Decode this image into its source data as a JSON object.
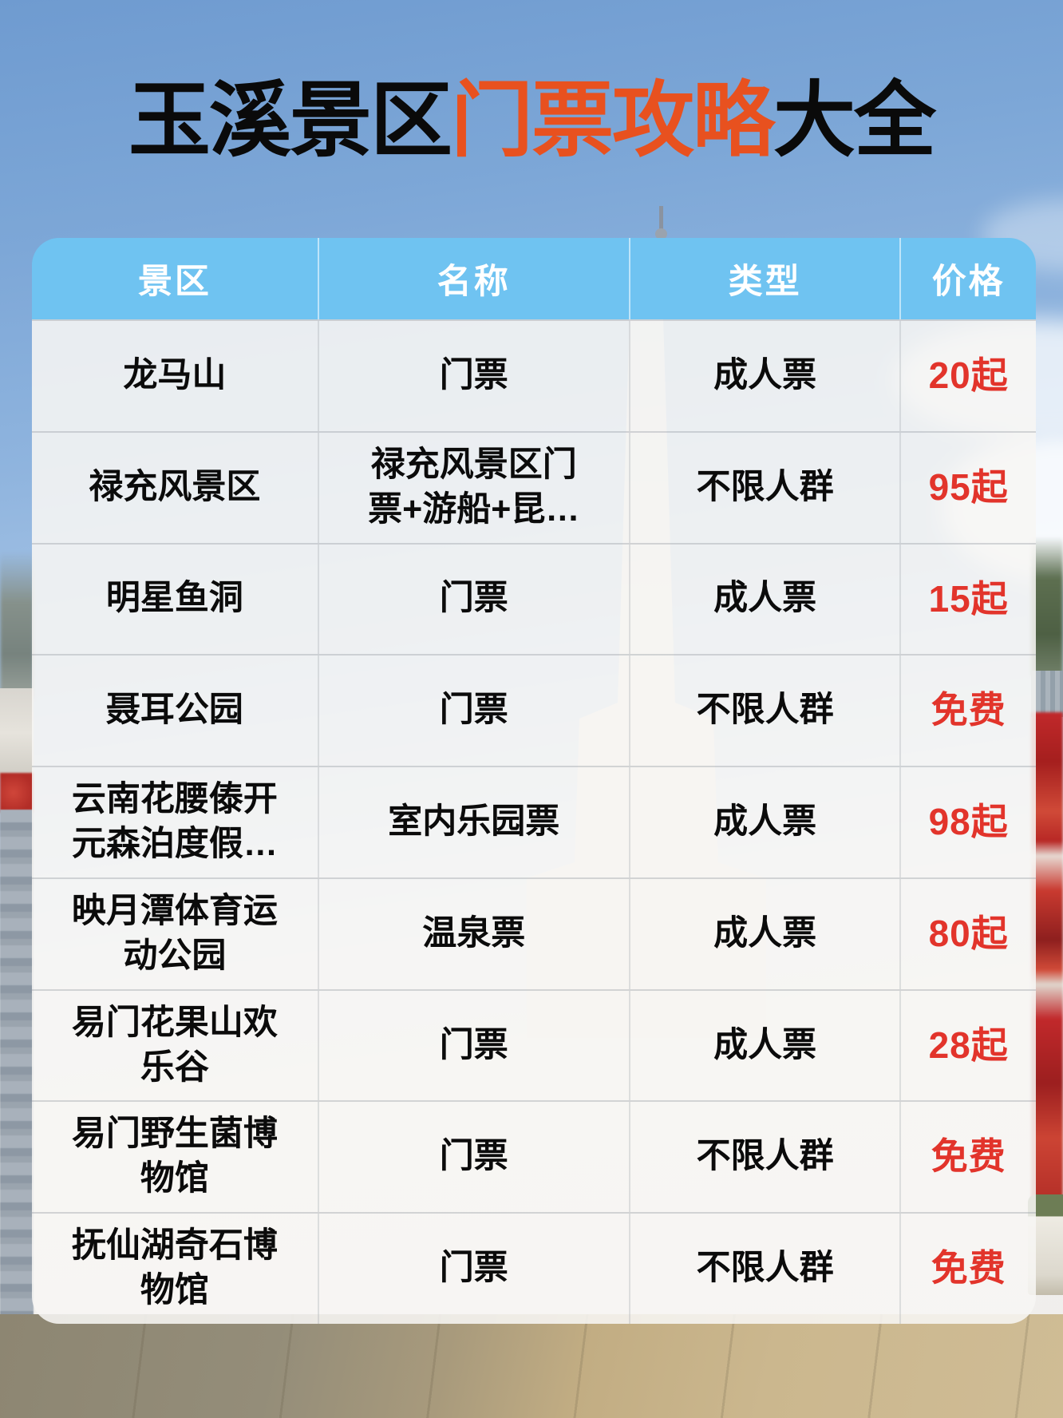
{
  "title": {
    "part1": "玉溪景区",
    "part2": "门票攻略",
    "part3": "大全"
  },
  "colors": {
    "title_dark": "#0A0A0A",
    "title_accent": "#E8511F",
    "header_bg": "#6FC3F1",
    "header_text": "#FFFFFF",
    "price_red": "#E2342B",
    "body_text": "#0B0B0B"
  },
  "table": {
    "headers": [
      {
        "label": "景区"
      },
      {
        "label": "名称"
      },
      {
        "label": "类型"
      },
      {
        "label": "价格"
      }
    ],
    "rows": [
      {
        "area": "龙马山",
        "name": "门票",
        "type": "成人票",
        "price": "20起"
      },
      {
        "area": "禄充风景区",
        "name": "禄充风景区门\n票+游船+昆…",
        "type": "不限人群",
        "price": "95起"
      },
      {
        "area": "明星鱼洞",
        "name": "门票",
        "type": "成人票",
        "price": "15起"
      },
      {
        "area": "聂耳公园",
        "name": "门票",
        "type": "不限人群",
        "price": "免费"
      },
      {
        "area": "云南花腰傣开\n元森泊度假…",
        "name": "室内乐园票",
        "type": "成人票",
        "price": "98起"
      },
      {
        "area": "映月潭体育运\n动公园",
        "name": "温泉票",
        "type": "成人票",
        "price": "80起"
      },
      {
        "area": "易门花果山欢\n乐谷",
        "name": "门票",
        "type": "成人票",
        "price": "28起"
      },
      {
        "area": "易门野生菌博\n物馆",
        "name": "门票",
        "type": "不限人群",
        "price": "免费"
      },
      {
        "area": "抚仙湖奇石博\n物馆",
        "name": "门票",
        "type": "不限人群",
        "price": "免费"
      }
    ]
  }
}
